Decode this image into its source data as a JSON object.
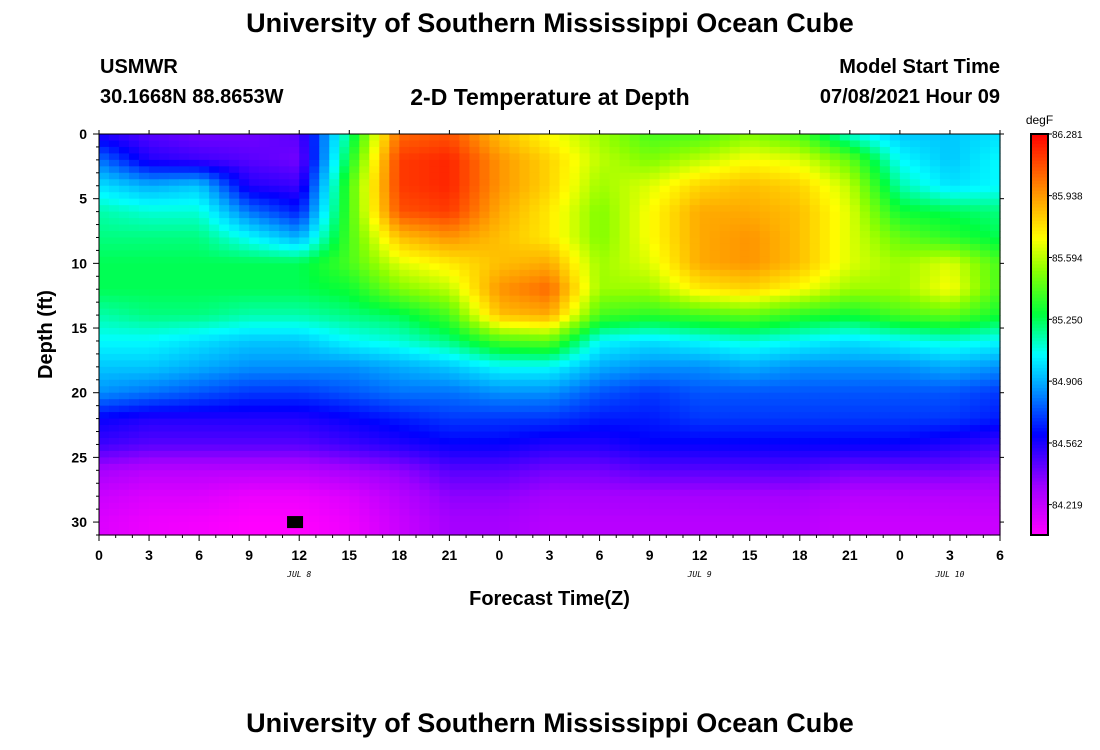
{
  "page": {
    "title_top": "University of Southern Mississippi Ocean Cube",
    "title_bottom": "University of Southern Mississippi Ocean Cube",
    "station": "USMWR",
    "coords": "30.1668N  88.8653W",
    "subtitle": "2-D Temperature at Depth",
    "model_start_label": "Model Start Time",
    "model_start_value": "07/08/2021 Hour 09"
  },
  "chart_data": {
    "type": "heatmap",
    "title": "2-D Temperature at Depth",
    "xlabel": "Forecast Time(Z)",
    "ylabel": "Depth (ft)",
    "x_tick_labels": [
      "0",
      "3",
      "6",
      "9",
      "12",
      "15",
      "18",
      "21",
      "0",
      "3",
      "6",
      "9",
      "12",
      "15",
      "18",
      "21",
      "0",
      "3",
      "6"
    ],
    "y_ticks": [
      0,
      5,
      10,
      15,
      20,
      25,
      30
    ],
    "ylim": [
      0,
      31
    ],
    "x_range_hours": [
      0,
      54
    ],
    "date_labels": [
      {
        "text": "JUL 8",
        "hour": 12
      },
      {
        "text": "JUL 9",
        "hour": 36
      },
      {
        "text": "JUL 10",
        "hour": 51
      }
    ],
    "colorbar": {
      "unit": "degF",
      "min": 84.05,
      "max": 86.281,
      "tick_values": [
        "86.281",
        "85.938",
        "85.594",
        "85.250",
        "84.906",
        "84.562",
        "84.219"
      ]
    },
    "approx_field": {
      "description": "temperature (degF) at depth; rows = depths, cols = forecast hours",
      "hours": [
        0,
        3,
        6,
        9,
        12,
        15,
        18,
        21,
        24,
        27,
        30,
        33,
        36,
        39,
        42,
        45,
        48,
        51,
        54
      ],
      "depths": [
        0,
        2,
        4,
        6,
        8,
        10,
        12,
        14,
        16,
        18,
        20,
        22,
        24,
        26,
        28,
        30,
        31
      ],
      "values": [
        [
          84.55,
          84.45,
          84.4,
          84.4,
          84.45,
          85.2,
          86.05,
          86.1,
          85.85,
          85.7,
          85.55,
          85.4,
          85.4,
          85.5,
          85.4,
          85.1,
          84.95,
          84.95,
          85.0
        ],
        [
          84.8,
          84.55,
          84.5,
          84.45,
          84.4,
          85.3,
          86.15,
          86.2,
          85.95,
          85.8,
          85.6,
          85.5,
          85.6,
          85.7,
          85.65,
          85.45,
          85.05,
          84.95,
          85.05
        ],
        [
          85.0,
          84.9,
          84.95,
          84.55,
          84.5,
          85.4,
          86.15,
          86.2,
          85.95,
          85.8,
          85.55,
          85.65,
          85.8,
          85.85,
          85.8,
          85.6,
          85.15,
          85.0,
          85.05
        ],
        [
          85.15,
          85.1,
          85.1,
          84.8,
          84.65,
          85.4,
          86.1,
          86.15,
          85.9,
          85.75,
          85.5,
          85.7,
          85.9,
          85.9,
          85.85,
          85.65,
          85.3,
          85.25,
          85.2
        ],
        [
          85.2,
          85.2,
          85.2,
          85.05,
          84.9,
          85.4,
          85.85,
          85.95,
          85.85,
          85.75,
          85.5,
          85.7,
          85.9,
          85.95,
          85.85,
          85.65,
          85.45,
          85.35,
          85.25
        ],
        [
          85.25,
          85.25,
          85.25,
          85.25,
          85.25,
          85.4,
          85.65,
          85.75,
          85.85,
          85.9,
          85.55,
          85.65,
          85.9,
          85.95,
          85.85,
          85.65,
          85.55,
          85.65,
          85.4
        ],
        [
          85.25,
          85.25,
          85.25,
          85.25,
          85.25,
          85.3,
          85.5,
          85.6,
          85.95,
          86.05,
          85.55,
          85.55,
          85.75,
          85.8,
          85.7,
          85.55,
          85.55,
          85.7,
          85.4
        ],
        [
          85.15,
          85.2,
          85.2,
          85.15,
          85.15,
          85.2,
          85.25,
          85.4,
          85.85,
          85.9,
          85.4,
          85.35,
          85.4,
          85.45,
          85.35,
          85.3,
          85.4,
          85.45,
          85.3
        ],
        [
          85.05,
          85.05,
          85.0,
          84.95,
          84.95,
          85.05,
          85.1,
          85.2,
          85.4,
          85.45,
          85.05,
          85.0,
          85.05,
          85.1,
          85.05,
          85.0,
          85.05,
          85.1,
          85.05
        ],
        [
          84.95,
          84.95,
          84.9,
          84.85,
          84.85,
          84.85,
          84.9,
          84.95,
          85.05,
          85.05,
          84.9,
          84.85,
          84.85,
          84.9,
          84.85,
          84.85,
          84.85,
          84.9,
          84.85
        ],
        [
          84.85,
          84.8,
          84.75,
          84.7,
          84.7,
          84.75,
          84.8,
          84.8,
          84.85,
          84.85,
          84.75,
          84.7,
          84.75,
          84.75,
          84.75,
          84.75,
          84.75,
          84.75,
          84.7
        ],
        [
          84.6,
          84.55,
          84.55,
          84.55,
          84.55,
          84.6,
          84.65,
          84.7,
          84.7,
          84.7,
          84.65,
          84.65,
          84.7,
          84.7,
          84.7,
          84.7,
          84.7,
          84.7,
          84.65
        ],
        [
          84.5,
          84.45,
          84.45,
          84.45,
          84.45,
          84.5,
          84.55,
          84.6,
          84.6,
          84.55,
          84.55,
          84.6,
          84.6,
          84.6,
          84.6,
          84.6,
          84.6,
          84.55,
          84.5
        ],
        [
          84.3,
          84.25,
          84.25,
          84.25,
          84.25,
          84.3,
          84.35,
          84.45,
          84.45,
          84.4,
          84.4,
          84.45,
          84.45,
          84.45,
          84.45,
          84.4,
          84.4,
          84.4,
          84.35
        ],
        [
          84.2,
          84.15,
          84.15,
          84.1,
          84.1,
          84.15,
          84.25,
          84.35,
          84.35,
          84.3,
          84.3,
          84.3,
          84.3,
          84.3,
          84.3,
          84.25,
          84.25,
          84.25,
          84.25
        ],
        [
          84.15,
          84.1,
          84.08,
          84.05,
          84.05,
          84.1,
          84.2,
          84.3,
          84.3,
          84.25,
          84.25,
          84.25,
          84.25,
          84.25,
          84.25,
          84.2,
          84.2,
          84.2,
          84.2
        ],
        [
          84.15,
          84.1,
          84.08,
          84.05,
          84.05,
          84.1,
          84.2,
          84.3,
          84.3,
          84.25,
          84.25,
          84.25,
          84.25,
          84.25,
          84.25,
          84.2,
          84.2,
          84.2,
          84.2
        ]
      ]
    },
    "marker": {
      "hour": 11.75,
      "depth": 30,
      "shape": "black-rectangle"
    }
  }
}
